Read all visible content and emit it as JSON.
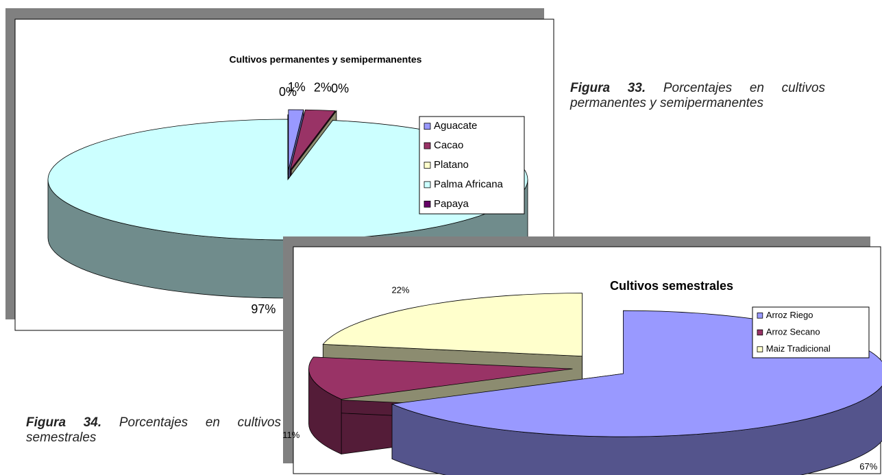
{
  "chart_data": [
    {
      "type": "pie",
      "title": "Cultivos permanentes y semipermanentes",
      "categories": [
        "Aguacate",
        "Cacao",
        "Platano",
        "Palma Africana",
        "Papaya"
      ],
      "values": [
        1,
        2,
        0,
        97,
        0
      ],
      "value_labels": [
        "1%",
        "2%",
        "0%",
        "97%",
        "0%"
      ],
      "colors": [
        "#9999ff",
        "#993366",
        "#ffffcc",
        "#ccffff",
        "#660066"
      ],
      "legend": "right"
    },
    {
      "type": "pie",
      "title": "Cultivos semestrales",
      "categories": [
        "Arroz Riego",
        "Arroz Secano",
        "Maiz Tradicional"
      ],
      "values": [
        67,
        11,
        22
      ],
      "value_labels": [
        "67%",
        "11%",
        "22%"
      ],
      "colors": [
        "#9999ff",
        "#993366",
        "#ffffcc"
      ],
      "legend": "right"
    }
  ],
  "captions": [
    {
      "label": "Figura 33.",
      "text": "Porcentajes en cultivos permanentes y semipermanentes"
    },
    {
      "label": "Figura 34.",
      "text": "Porcentajes en cultivos semestrales"
    }
  ]
}
